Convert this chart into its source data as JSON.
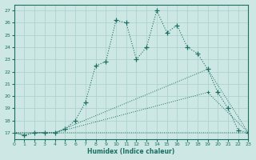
{
  "xlabel": "Humidex (Indice chaleur)",
  "xlim": [
    0,
    23
  ],
  "ylim": [
    16.5,
    27.5
  ],
  "xticks": [
    0,
    1,
    2,
    3,
    4,
    5,
    6,
    7,
    8,
    9,
    10,
    11,
    12,
    13,
    14,
    15,
    16,
    17,
    18,
    19,
    20,
    21,
    22,
    23
  ],
  "yticks": [
    17,
    18,
    19,
    20,
    21,
    22,
    23,
    24,
    25,
    26,
    27
  ],
  "bg_color": "#cde8e4",
  "line_color": "#1a6e62",
  "grid_color": "#aacfcb",
  "line1_x": [
    0,
    1,
    2,
    3,
    4,
    5,
    6,
    7,
    8,
    9,
    10,
    11,
    12,
    13,
    14,
    15,
    16,
    17,
    18,
    19,
    20,
    21,
    22,
    23
  ],
  "line1_y": [
    17,
    16.8,
    17,
    17,
    17,
    17,
    17,
    17,
    17,
    17,
    17,
    17,
    17,
    17,
    17,
    17,
    17,
    17,
    17,
    17,
    17,
    17,
    17,
    17
  ],
  "line2_x": [
    0,
    4,
    19,
    23
  ],
  "line2_y": [
    17,
    17,
    20.3,
    17
  ],
  "line3_x": [
    0,
    4,
    19,
    23
  ],
  "line3_y": [
    17,
    17,
    22.2,
    17
  ],
  "line4_x": [
    0,
    1,
    2,
    3,
    4,
    5,
    6,
    7,
    8,
    9,
    10,
    11,
    12,
    13,
    14,
    15,
    16,
    17,
    18,
    19,
    20,
    21,
    22,
    23
  ],
  "line4_y": [
    17,
    16.8,
    17,
    17,
    17,
    17.3,
    18.0,
    19.5,
    22.5,
    22.8,
    26.2,
    26.0,
    23.0,
    24.0,
    27.0,
    25.2,
    25.8,
    24.0,
    23.5,
    22.2,
    20.3,
    19.0,
    17.2,
    17.0
  ],
  "figsize": [
    3.2,
    2.0
  ],
  "dpi": 100
}
